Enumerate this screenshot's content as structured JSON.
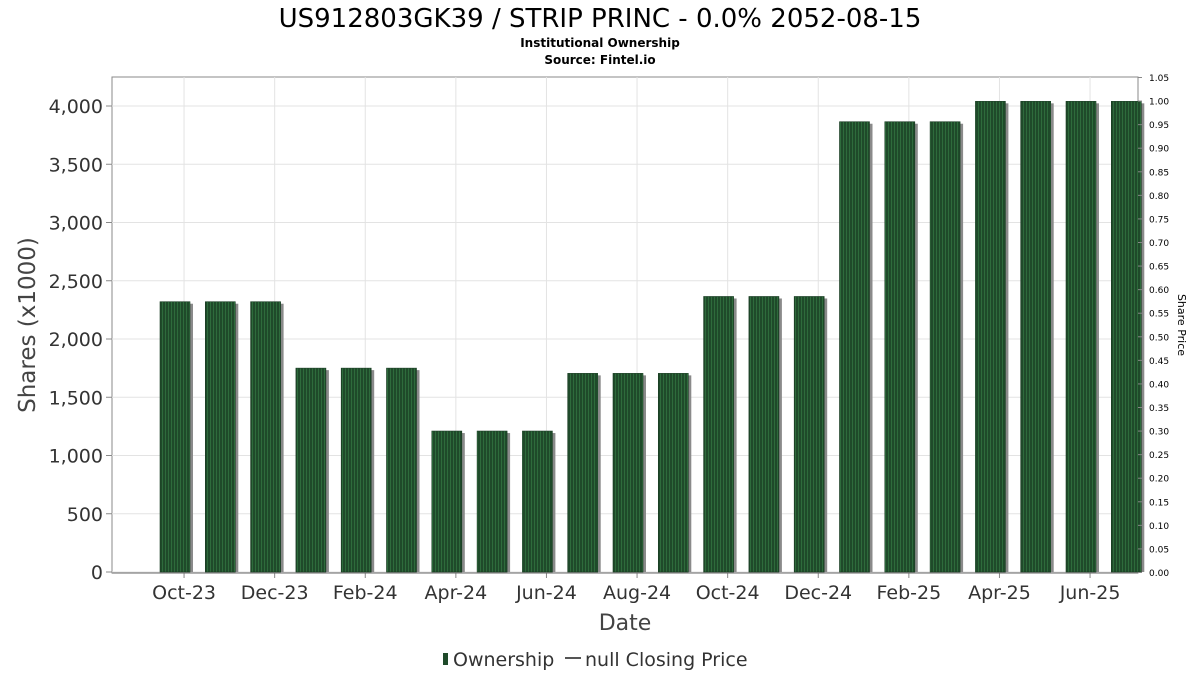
{
  "chart_data": {
    "type": "bar",
    "title": "US912803GK39 / STRIP PRINC - 0.0% 2052-08-15",
    "subtitle_lines": [
      "Institutional Ownership",
      "Source: Fintel.io"
    ],
    "xlabel": "Date",
    "ylabel": "Shares (x1000)",
    "y2label": "Share Price",
    "ylim": [
      0,
      4250
    ],
    "y2lim": [
      0,
      1.05
    ],
    "yticks": [
      0,
      500,
      1000,
      1500,
      2000,
      2500,
      3000,
      3500,
      4000
    ],
    "ytick_labels": [
      "0",
      "500",
      "1,000",
      "1,500",
      "2,000",
      "2,500",
      "3,000",
      "3,500",
      "4,000"
    ],
    "y2ticks": [
      0,
      0.05,
      0.1,
      0.15,
      0.2,
      0.25,
      0.3,
      0.35,
      0.4,
      0.45,
      0.5,
      0.55,
      0.6,
      0.65,
      0.7,
      0.75,
      0.8,
      0.85,
      0.9,
      0.95,
      1.0,
      1.05
    ],
    "y2tick_labels": [
      "0.00",
      "0.05",
      "0.10",
      "0.15",
      "0.20",
      "0.25",
      "0.30",
      "0.35",
      "0.40",
      "0.45",
      "0.50",
      "0.55",
      "0.60",
      "0.65",
      "0.70",
      "0.75",
      "0.80",
      "0.85",
      "0.90",
      "0.95",
      "1.00",
      "1.05"
    ],
    "xtick_labels": [
      "Oct-23",
      "Dec-23",
      "Feb-24",
      "Apr-24",
      "Jun-24",
      "Aug-24",
      "Oct-24",
      "Dec-24",
      "Feb-25",
      "Apr-25",
      "Jun-25"
    ],
    "x": [
      "2023-09-30",
      "2023-10-31",
      "2023-11-30",
      "2023-12-31",
      "2024-01-31",
      "2024-02-29",
      "2024-03-31",
      "2024-04-30",
      "2024-05-31",
      "2024-06-30",
      "2024-07-31",
      "2024-08-31",
      "2024-09-30",
      "2024-10-31",
      "2024-11-30",
      "2024-12-31",
      "2025-01-31",
      "2025-02-28",
      "2025-03-31",
      "2025-04-30",
      "2025-05-31",
      "2025-06-30"
    ],
    "series": [
      {
        "name": "Ownership",
        "color": "#1f4a2a",
        "values": [
          2320,
          2320,
          2320,
          1750,
          1750,
          1750,
          1210,
          1210,
          1210,
          1705,
          1705,
          1705,
          2365,
          2365,
          2365,
          3865,
          3865,
          3865,
          4040,
          4040,
          4040,
          4040
        ]
      }
    ],
    "legend": {
      "position": "bottom-center",
      "items": [
        {
          "label": "Ownership",
          "marker": "bar",
          "color": "#1f4a2a"
        },
        {
          "label": "null Closing Price",
          "marker": "line",
          "color": "#555555"
        }
      ]
    },
    "grid": true
  }
}
